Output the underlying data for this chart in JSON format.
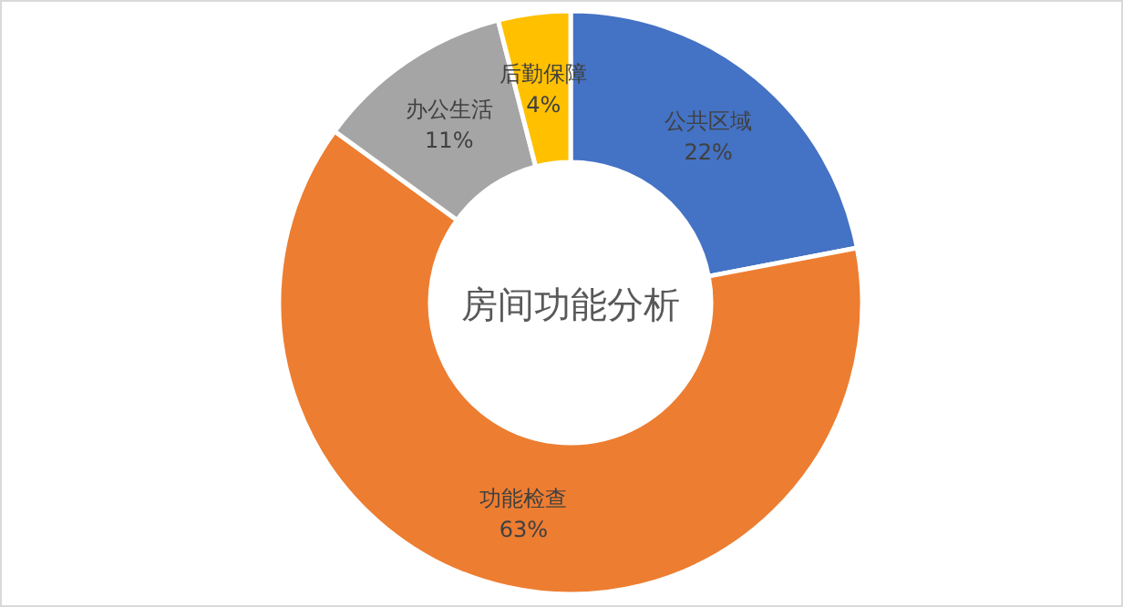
{
  "chart_data": {
    "type": "donut",
    "title": "房间功能分析",
    "categories": [
      "公共区域",
      "功能检查",
      "办公生活",
      "后勤保障"
    ],
    "values": [
      22,
      63,
      11,
      4
    ],
    "colors": [
      "#4472c4",
      "#ed7d31",
      "#a5a5a5",
      "#ffc000"
    ],
    "value_labels": [
      "22%",
      "63%",
      "11%",
      "4%"
    ]
  }
}
